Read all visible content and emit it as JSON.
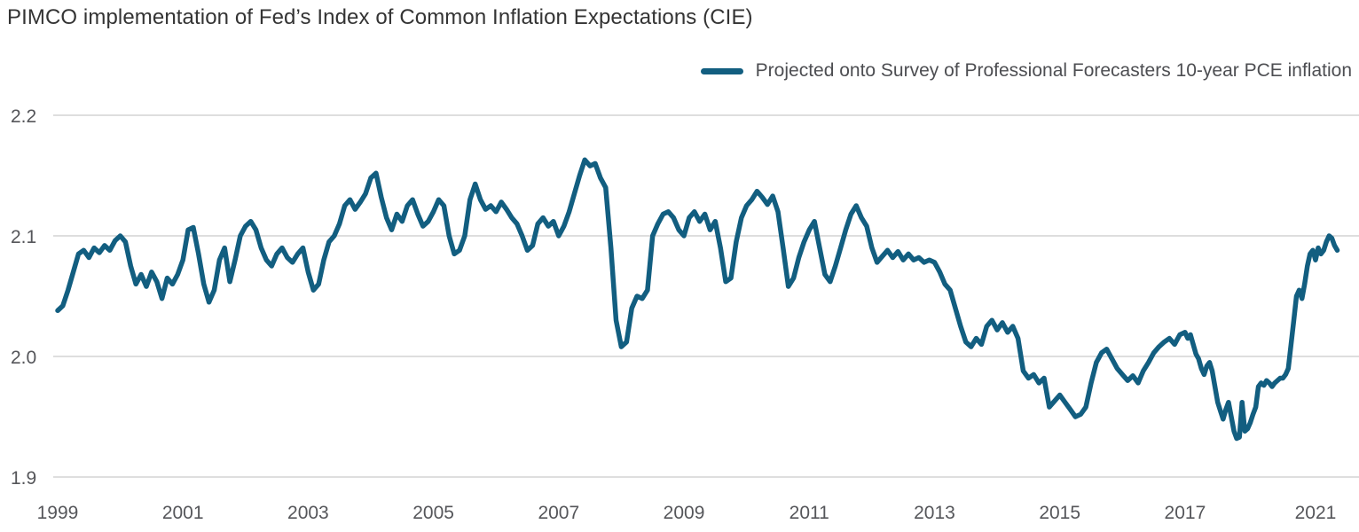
{
  "title": "PIMCO implementation of Fed’s Index of Common Inflation Expectations (CIE)",
  "legend": {
    "label": "Projected onto Survey of Professional Forecasters 10-year PCE inflation"
  },
  "colors": {
    "line": "#125e80",
    "grid": "#cbcbcb",
    "axis_text": "#55565a",
    "title_text": "#343434",
    "background": "#ffffff"
  },
  "chart_data": {
    "type": "line",
    "title": "PIMCO implementation of Fed’s Index of Common Inflation Expectations (CIE)",
    "legend_position": "top-right",
    "grid": "horizontal",
    "xlabel": "",
    "ylabel": "",
    "ylim": [
      1.9,
      2.2
    ],
    "y_ticks": [
      2.2,
      2.1,
      2.0,
      1.9
    ],
    "y_tick_labels": [
      "2.2",
      "2.1",
      "2.0",
      "1.9"
    ],
    "x_tick_years": [
      1999,
      2001,
      2003,
      2005,
      2007,
      2009,
      2011,
      2013,
      2015,
      2017,
      2021
    ],
    "x_tick_labels": [
      "1999",
      "2001",
      "2003",
      "2005",
      "2007",
      "2009",
      "2011",
      "2013",
      "2015",
      "2017",
      "2021"
    ],
    "series": [
      {
        "name": "Projected onto Survey of Professional Forecasters 10-year PCE inflation",
        "start_year": 1999,
        "frequency": "monthly",
        "values": [
          2.038,
          2.042,
          2.055,
          2.07,
          2.085,
          2.088,
          2.082,
          2.09,
          2.086,
          2.092,
          2.088,
          2.096,
          2.1,
          2.095,
          2.075,
          2.06,
          2.068,
          2.058,
          2.07,
          2.062,
          2.048,
          2.065,
          2.06,
          2.068,
          2.08,
          2.105,
          2.107,
          2.085,
          2.06,
          2.045,
          2.055,
          2.08,
          2.09,
          2.062,
          2.08,
          2.1,
          2.108,
          2.112,
          2.105,
          2.09,
          2.08,
          2.075,
          2.085,
          2.09,
          2.082,
          2.078,
          2.085,
          2.09,
          2.07,
          2.055,
          2.06,
          2.08,
          2.095,
          2.1,
          2.11,
          2.125,
          2.13,
          2.122,
          2.128,
          2.135,
          2.148,
          2.152,
          2.132,
          2.115,
          2.105,
          2.118,
          2.112,
          2.125,
          2.13,
          2.118,
          2.108,
          2.112,
          2.12,
          2.13,
          2.125,
          2.1,
          2.085,
          2.088,
          2.1,
          2.13,
          2.143,
          2.13,
          2.122,
          2.125,
          2.12,
          2.128,
          2.122,
          2.115,
          2.11,
          2.1,
          2.088,
          2.092,
          2.11,
          2.115,
          2.108,
          2.112,
          2.1,
          2.108,
          2.12,
          2.135,
          2.15,
          2.163,
          2.158,
          2.16,
          2.148,
          2.14,
          2.09,
          2.03,
          2.008,
          2.012,
          2.04,
          2.05,
          2.048,
          2.055,
          2.1,
          2.11,
          2.118,
          2.12,
          2.115,
          2.105,
          2.1,
          2.115,
          2.12,
          2.112,
          2.118,
          2.105,
          2.112,
          2.09,
          2.062,
          2.065,
          2.095,
          2.115,
          2.125,
          2.13,
          2.137,
          2.132,
          2.126,
          2.133,
          2.12,
          2.09,
          2.058,
          2.065,
          2.082,
          2.095,
          2.105,
          2.112,
          2.09,
          2.068,
          2.062,
          2.075,
          2.09,
          2.105,
          2.118,
          2.125,
          2.115,
          2.108,
          2.09,
          2.078,
          2.083,
          2.088,
          2.082,
          2.087,
          2.08,
          2.085,
          2.08,
          2.082,
          2.078,
          2.08,
          2.078,
          2.07,
          2.06,
          2.055,
          2.04,
          2.025,
          2.012,
          2.008,
          2.015,
          2.01,
          2.025,
          2.03,
          2.022,
          2.028,
          2.02,
          2.025,
          2.015,
          1.988,
          1.982,
          1.985,
          1.978,
          1.982,
          1.958,
          1.963,
          1.968,
          1.962,
          1.956,
          1.95,
          1.952,
          1.958,
          1.978,
          1.995,
          2.003,
          2.006,
          1.998,
          1.99,
          1.985,
          1.98,
          1.984,
          1.978,
          1.988,
          1.995,
          2.003,
          2.008,
          2.012,
          2.015,
          2.01,
          2.018,
          2.02,
          2.015,
          2.018,
          2.01,
          2.002,
          1.998,
          1.99,
          1.985,
          1.992,
          1.995,
          1.988,
          1.975,
          1.962,
          1.955,
          1.948,
          1.956,
          1.962,
          1.95,
          1.938,
          1.932,
          1.933,
          1.962,
          1.938,
          1.94,
          1.945,
          1.952,
          1.958,
          1.975,
          1.978,
          1.976,
          1.98,
          1.978,
          1.975,
          1.978,
          1.98,
          1.982,
          1.982,
          1.985,
          1.99,
          2.01,
          2.03,
          2.05,
          2.055,
          2.048,
          2.06,
          2.075,
          2.085,
          2.088,
          2.08,
          2.09,
          2.085,
          2.088,
          2.095,
          2.1,
          2.098,
          2.092,
          2.088
        ]
      }
    ]
  }
}
